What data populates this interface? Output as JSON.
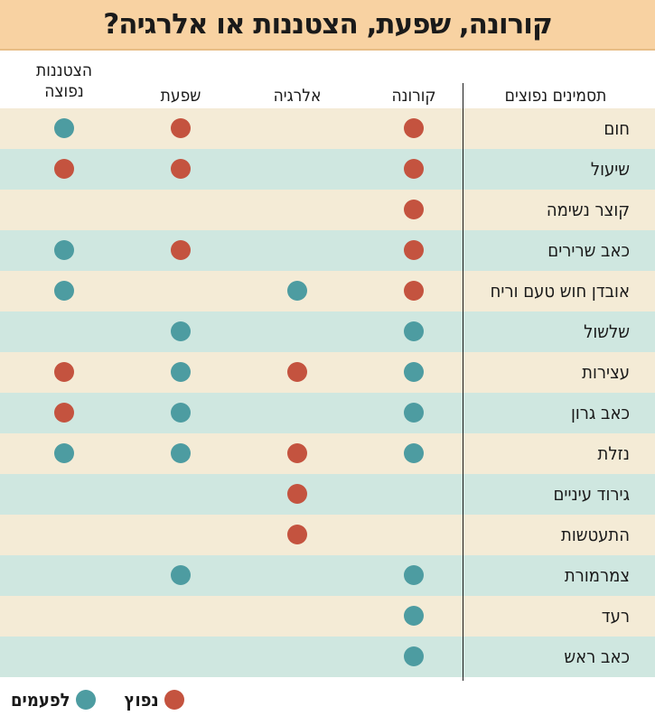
{
  "title": "קורונה, שפעת, הצטננות או אלרגיה?",
  "columns": {
    "symptoms": "תסמינים נפוצים",
    "corona": "קורונה",
    "allergy": "אלרגיה",
    "flu": "שפעת",
    "cold_line1": "הצטננות",
    "cold_line2": "נפוצה"
  },
  "legend": {
    "common": "נפוץ",
    "sometimes": "לפעמים"
  },
  "colors": {
    "title_bg": "#f8d2a2",
    "row_beige": "#f4ebd6",
    "row_teal": "#cfe7e0",
    "common_dot": "#c4533f",
    "sometimes_dot": "#4d9ca1"
  },
  "rows": [
    {
      "symptom": "חום",
      "corona": "common",
      "allergy": "",
      "flu": "common",
      "cold": "sometimes"
    },
    {
      "symptom": "שיעול",
      "corona": "common",
      "allergy": "",
      "flu": "common",
      "cold": "common"
    },
    {
      "symptom": "קוצר נשימה",
      "corona": "common",
      "allergy": "",
      "flu": "",
      "cold": ""
    },
    {
      "symptom": "כאב שרירים",
      "corona": "common",
      "allergy": "",
      "flu": "common",
      "cold": "sometimes"
    },
    {
      "symptom": "אובדן חוש טעם וריח",
      "corona": "common",
      "allergy": "sometimes",
      "flu": "",
      "cold": "sometimes"
    },
    {
      "symptom": "שלשול",
      "corona": "sometimes",
      "allergy": "",
      "flu": "sometimes",
      "cold": ""
    },
    {
      "symptom": "עצירות",
      "corona": "sometimes",
      "allergy": "common",
      "flu": "sometimes",
      "cold": "common"
    },
    {
      "symptom": "כאב גרון",
      "corona": "sometimes",
      "allergy": "",
      "flu": "sometimes",
      "cold": "common"
    },
    {
      "symptom": "נזלת",
      "corona": "sometimes",
      "allergy": "common",
      "flu": "sometimes",
      "cold": "sometimes"
    },
    {
      "symptom": "גירוד עיניים",
      "corona": "",
      "allergy": "common",
      "flu": "",
      "cold": ""
    },
    {
      "symptom": "התעטשות",
      "corona": "",
      "allergy": "common",
      "flu": "",
      "cold": ""
    },
    {
      "symptom": "צמרמורת",
      "corona": "sometimes",
      "allergy": "",
      "flu": "sometimes",
      "cold": ""
    },
    {
      "symptom": "רעד",
      "corona": "sometimes",
      "allergy": "",
      "flu": "",
      "cold": ""
    },
    {
      "symptom": "כאב ראש",
      "corona": "sometimes",
      "allergy": "",
      "flu": "",
      "cold": ""
    }
  ]
}
